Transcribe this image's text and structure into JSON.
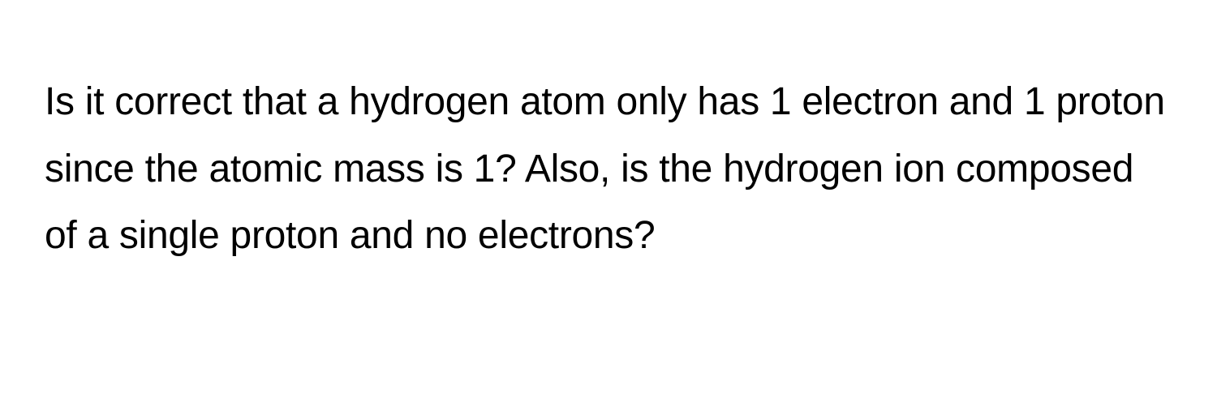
{
  "question": {
    "text": "Is it correct that a hydrogen atom only has 1 electron and 1 proton since the atomic mass is 1? Also, is the hydrogen ion composed of a single proton and no electrons?",
    "font_size": 48,
    "line_height": 1.72,
    "text_color": "#000000",
    "background_color": "#ffffff",
    "font_weight": 400
  }
}
